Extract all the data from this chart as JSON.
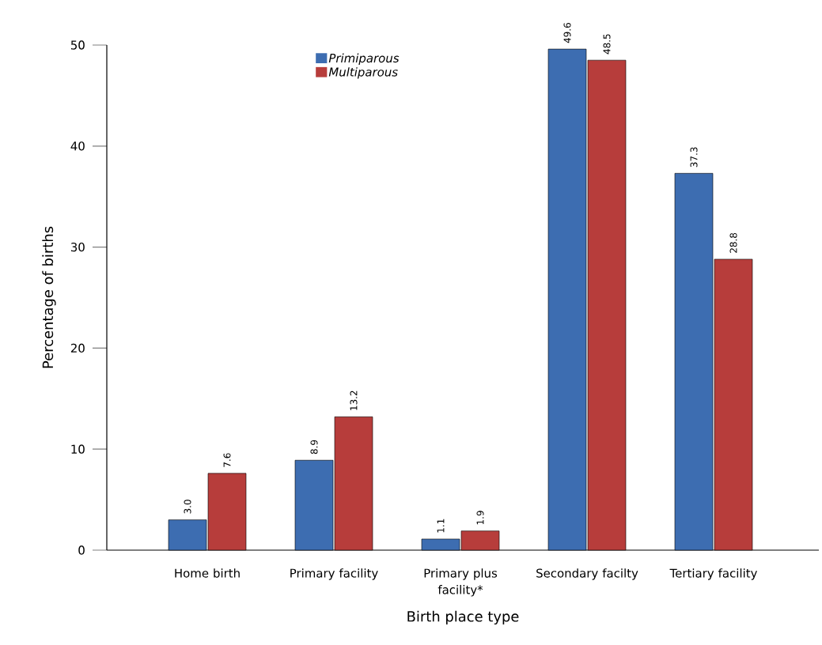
{
  "chart_data": {
    "type": "bar",
    "xlabel": "Birth place type",
    "ylabel": "Percentage of births",
    "categories": [
      "Home birth",
      "Primary facility",
      "Primary plus facility*",
      "Secondary facilty",
      "Tertiary facility"
    ],
    "series": [
      {
        "name": "Primiparous",
        "color": "#3d6db1",
        "values": [
          3.0,
          8.9,
          1.1,
          49.6,
          37.3
        ],
        "value_labels": [
          "3.0",
          "8.9",
          "1.1",
          "49.6",
          "37.3"
        ]
      },
      {
        "name": "Multiparous",
        "color": "#b73d3b",
        "values": [
          7.6,
          13.2,
          1.9,
          48.5,
          28.8
        ],
        "value_labels": [
          "7.6",
          "13.2",
          "1.9",
          "48.5",
          "28.8"
        ]
      }
    ],
    "ylim": [
      0,
      50
    ],
    "yticks": [
      0,
      10,
      20,
      30,
      40,
      50
    ],
    "legend": "top",
    "grid": false
  }
}
